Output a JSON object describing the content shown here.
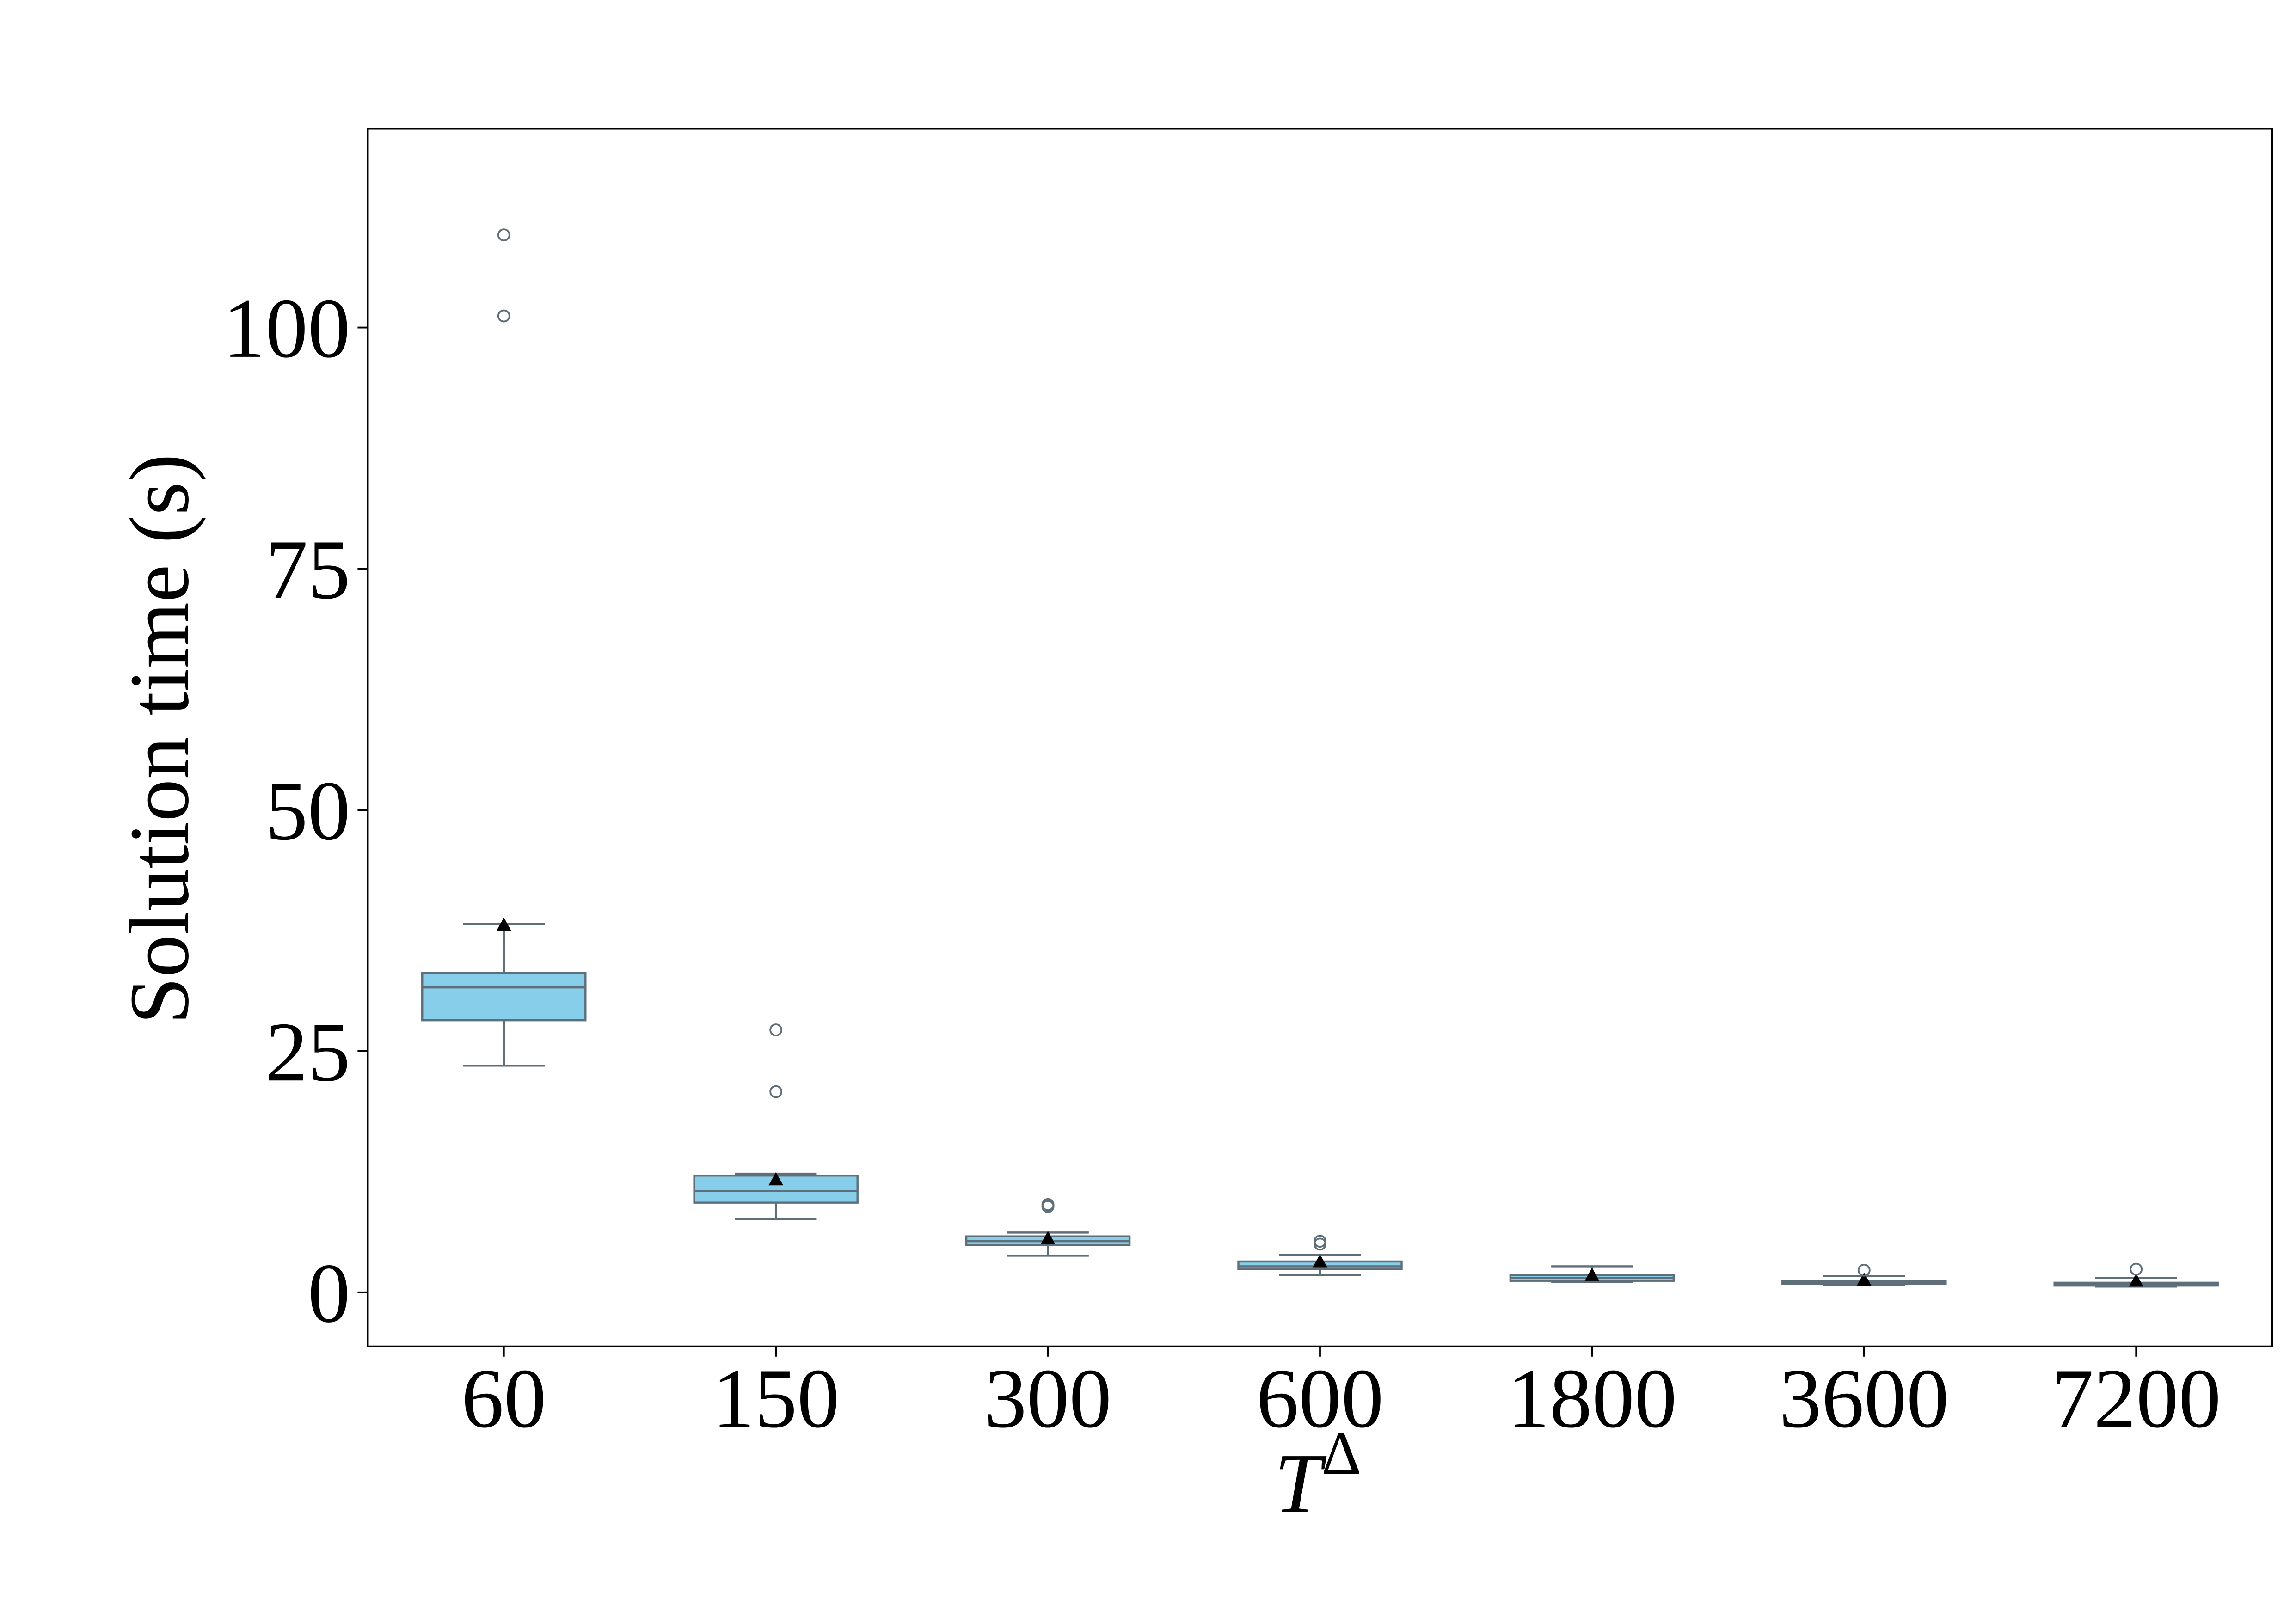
{
  "chart_data": {
    "type": "box",
    "ylabel": "Solution time (s)",
    "xlabel": "T",
    "xlabel_superscript": "Δ",
    "categories": [
      "60",
      "150",
      "300",
      "600",
      "1800",
      "3600",
      "7200"
    ],
    "color": "#87ceeb",
    "edge_color": "#5f6f7a",
    "ylim": [
      -5.6,
      120.6
    ],
    "yticks": [
      0,
      25,
      50,
      75,
      100
    ],
    "boxes": [
      {
        "whislo": 23.5,
        "q1": 28.2,
        "med": 31.6,
        "q3": 33.1,
        "whishi": 38.2,
        "mean": 38.1,
        "fliers": [
          101.2,
          109.6
        ]
      },
      {
        "whislo": 7.6,
        "q1": 9.3,
        "med": 10.5,
        "q3": 12.1,
        "whishi": 12.3,
        "mean": 11.7,
        "fliers": [
          27.2,
          20.8
        ]
      },
      {
        "whislo": 3.8,
        "q1": 4.9,
        "med": 5.3,
        "q3": 5.8,
        "whishi": 6.2,
        "mean": 5.6,
        "fliers": [
          9.1,
          8.9
        ]
      },
      {
        "whislo": 1.8,
        "q1": 2.4,
        "med": 2.7,
        "q3": 3.2,
        "whishi": 3.9,
        "mean": 3.2,
        "fliers": [
          5.3,
          5.0
        ]
      },
      {
        "whislo": 1.1,
        "q1": 1.2,
        "med": 1.5,
        "q3": 1.8,
        "whishi": 2.7,
        "mean": 1.8,
        "fliers": []
      },
      {
        "whislo": 0.8,
        "q1": 0.9,
        "med": 1.0,
        "q3": 1.2,
        "whishi": 1.7,
        "mean": 1.3,
        "fliers": [
          2.3
        ]
      },
      {
        "whislo": 0.6,
        "q1": 0.7,
        "med": 0.9,
        "q3": 1.0,
        "whishi": 1.5,
        "mean": 1.2,
        "fliers": [
          2.4
        ]
      }
    ]
  }
}
